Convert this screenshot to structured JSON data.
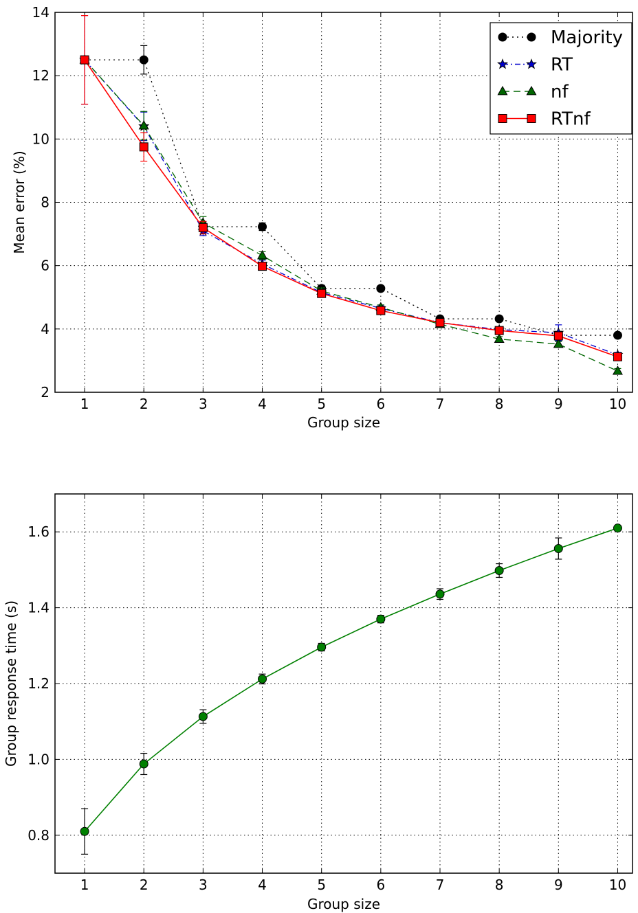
{
  "chart_data": [
    {
      "type": "line",
      "xlabel": "Group size",
      "ylabel": "Mean error (%)",
      "xlim": [
        0.5,
        10.25
      ],
      "ylim": [
        2,
        14
      ],
      "xticks": [
        1,
        2,
        3,
        4,
        5,
        6,
        7,
        8,
        9,
        10
      ],
      "yticks": [
        2,
        4,
        6,
        8,
        10,
        12,
        14
      ],
      "grid": true,
      "legend_position": "top-right",
      "x": [
        1,
        2,
        3,
        4,
        5,
        6,
        7,
        8,
        9,
        10
      ],
      "series": [
        {
          "name": "Majority",
          "color": "#000000",
          "linestyle": "dotted",
          "marker": "circle",
          "values": [
            12.5,
            12.5,
            7.23,
            7.23,
            5.28,
            5.28,
            4.32,
            4.32,
            3.8,
            3.8
          ],
          "errors": [
            0,
            0.45,
            0.15,
            0.12,
            0.1,
            0.08,
            0.08,
            0.08,
            0.08,
            0.08
          ]
        },
        {
          "name": "RT",
          "color": "#0000cc",
          "linestyle": "dashdot",
          "marker": "star",
          "values": [
            12.5,
            10.4,
            7.1,
            6.05,
            5.15,
            4.65,
            4.2,
            3.98,
            3.88,
            3.18
          ],
          "errors": [
            1.4,
            0.45,
            0.15,
            0.12,
            0.1,
            0.08,
            0.08,
            0.08,
            0.25,
            0.08
          ]
        },
        {
          "name": "nf",
          "color": "#006600",
          "linestyle": "dashed",
          "marker": "triangle",
          "values": [
            12.5,
            10.42,
            7.35,
            6.32,
            5.2,
            4.68,
            4.15,
            3.68,
            3.52,
            2.67
          ],
          "errors": [
            0,
            0.45,
            0.2,
            0.12,
            0.1,
            0.08,
            0.08,
            0.08,
            0.08,
            0.08
          ]
        },
        {
          "name": "RTnf",
          "color": "#ff0000",
          "linestyle": "solid",
          "marker": "square",
          "values": [
            12.5,
            9.75,
            7.2,
            5.98,
            5.12,
            4.58,
            4.2,
            3.95,
            3.78,
            3.12
          ],
          "errors": [
            1.4,
            0.45,
            0.2,
            0.12,
            0.1,
            0.08,
            0.08,
            0.08,
            0.08,
            0.08
          ]
        }
      ]
    },
    {
      "type": "line",
      "xlabel": "Group size",
      "ylabel": "Group response time (s)",
      "xlim": [
        0.5,
        10.25
      ],
      "ylim": [
        0.7,
        1.7
      ],
      "xticks": [
        1,
        2,
        3,
        4,
        5,
        6,
        7,
        8,
        9,
        10
      ],
      "yticks": [
        0.8,
        1.0,
        1.2,
        1.4,
        1.6
      ],
      "ytick_labels": [
        "0.8",
        "1.0",
        "1.2",
        "1.4",
        "1.6"
      ],
      "grid": true,
      "x": [
        1,
        2,
        3,
        4,
        5,
        6,
        7,
        8,
        9,
        10
      ],
      "series": [
        {
          "color": "#008000",
          "linestyle": "solid",
          "marker": "circle",
          "values": [
            0.81,
            0.988,
            1.113,
            1.212,
            1.296,
            1.37,
            1.436,
            1.498,
            1.556,
            1.61
          ],
          "errors": [
            0.06,
            0.028,
            0.018,
            0.013,
            0.01,
            0.01,
            0.014,
            0.018,
            0.028,
            0.005
          ]
        }
      ]
    }
  ]
}
